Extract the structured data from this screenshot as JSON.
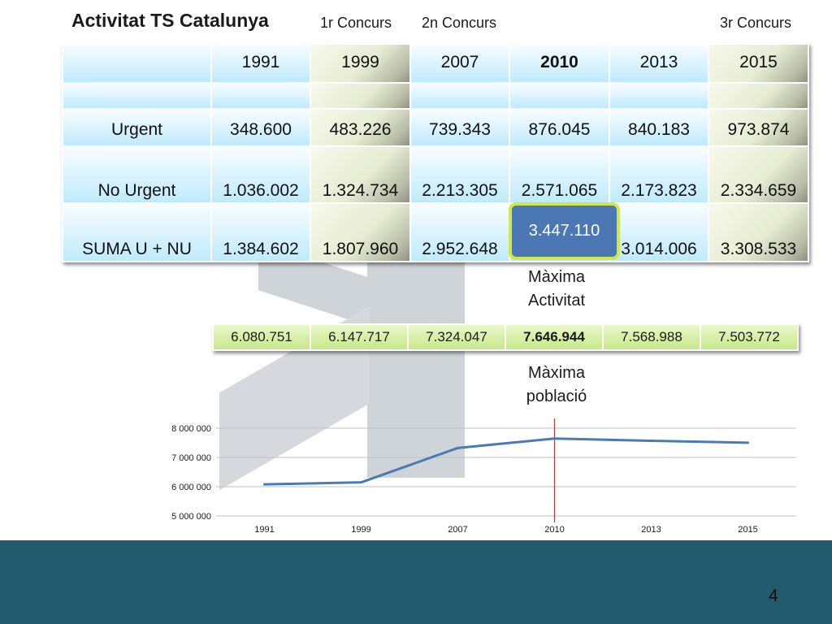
{
  "slide": {
    "title": "Activitat TS Catalunya",
    "concurs": [
      "1r Concurs",
      "2n Concurs",
      "3r Concurs"
    ],
    "page_number": "4"
  },
  "table": {
    "headers": [
      "",
      "1991",
      "1999",
      "2007",
      "2010",
      "2013",
      "2015"
    ],
    "rows": [
      {
        "label": "",
        "values": [
          "",
          "",
          "",
          "",
          "",
          ""
        ]
      },
      {
        "label": "Urgent",
        "values": [
          "348.600",
          "483.226",
          "739.343",
          "876.045",
          "840.183",
          "973.874"
        ]
      },
      {
        "label": "No Urgent",
        "values": [
          "1.036.002",
          "1.324.734",
          "2.213.305",
          "2.571.065",
          "2.173.823",
          "2.334.659"
        ]
      },
      {
        "label": "SUMA U + NU",
        "values": [
          "1.384.602",
          "1.807.960",
          "2.952.648",
          "",
          "3.014.006",
          "3.308.533"
        ]
      }
    ]
  },
  "highlight": {
    "value": "3.447.110"
  },
  "notes": {
    "max_activity_1": "Màxima",
    "max_activity_2": "Activitat",
    "max_population_1": "Màxima",
    "max_population_2": "població"
  },
  "population": [
    "6.080.751",
    "6.147.717",
    "7.324.047",
    "7.646.944",
    "7.568.988",
    "7.503.772"
  ],
  "chart_data": {
    "type": "line",
    "categories": [
      "1991",
      "1999",
      "2007",
      "2010",
      "2013",
      "2015"
    ],
    "series": [
      {
        "values": [
          6080751,
          6147717,
          7324047,
          7646944,
          7568988,
          7503772
        ]
      }
    ],
    "yticks": [
      "5 000 000",
      "6 000 000",
      "7 000 000",
      "8 000 000"
    ],
    "ylim": [
      5000000,
      8000000
    ],
    "marker_category": "2010",
    "grid": true,
    "line_color": "#4a7ab5",
    "marker_color": "#b03a3a"
  }
}
